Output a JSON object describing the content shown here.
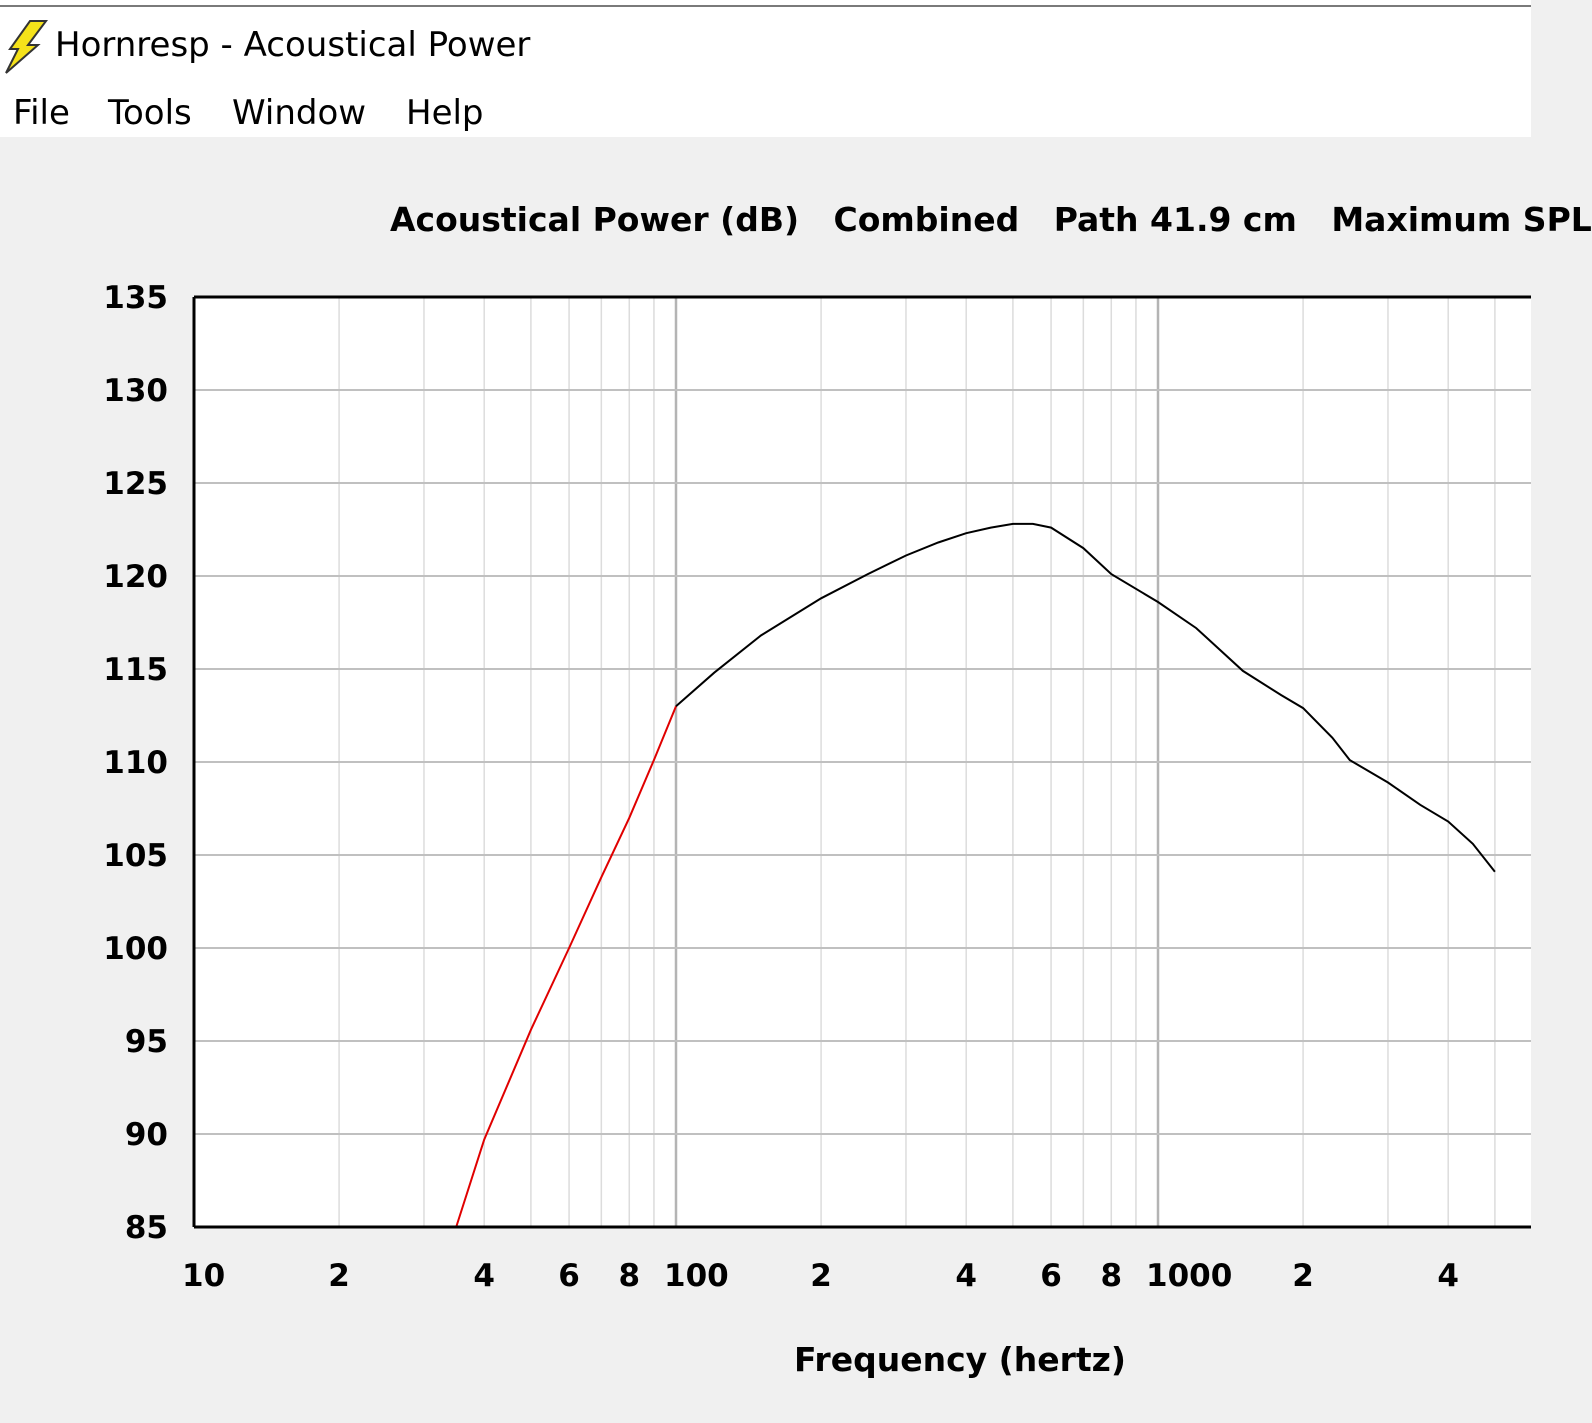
{
  "window": {
    "title": "Hornresp - Acoustical Power",
    "icon": "lightning-bolt-icon"
  },
  "menu": {
    "items": [
      "File",
      "Tools",
      "Window",
      "Help"
    ]
  },
  "chart_data": {
    "type": "line",
    "title": "Acoustical Power (dB)   Combined   Path 41.9 cm   Maximum SPL",
    "xlabel": "Frequency (hertz)",
    "ylabel": "",
    "x_scale": "log",
    "xlim": [
      10,
      5000
    ],
    "ylim": [
      85,
      135
    ],
    "grid": true,
    "y_ticks": [
      "135",
      "130",
      "125",
      "120",
      "115",
      "110",
      "105",
      "100",
      "95",
      "90",
      "85"
    ],
    "x_tick_labels": [
      "10",
      "2",
      "4",
      "6",
      "8",
      "100",
      "2",
      "4",
      "6",
      "8",
      "1000",
      "2",
      "4"
    ],
    "colors": {
      "low_segment": "#e00000",
      "main_segment": "#000000"
    },
    "series": [
      {
        "segment": "low",
        "x": [
          35,
          40,
          50,
          60,
          70,
          80,
          90,
          100
        ],
        "y": [
          85,
          89.7,
          95.6,
          100.0,
          103.8,
          107.0,
          110.1,
          113.0
        ]
      },
      {
        "segment": "main",
        "x": [
          100,
          120,
          150,
          200,
          250,
          300,
          350,
          400,
          450,
          500,
          550,
          600,
          700,
          800,
          1000,
          1200,
          1500,
          1800,
          2000,
          2300,
          2500,
          3000,
          3500,
          4000,
          4500,
          5000
        ],
        "y": [
          113.0,
          114.8,
          116.8,
          118.8,
          120.1,
          121.1,
          121.8,
          122.3,
          122.6,
          122.8,
          122.8,
          122.6,
          121.5,
          120.1,
          118.6,
          117.2,
          114.9,
          113.6,
          112.9,
          111.3,
          110.1,
          108.9,
          107.7,
          106.8,
          105.6,
          104.1
        ]
      }
    ]
  }
}
